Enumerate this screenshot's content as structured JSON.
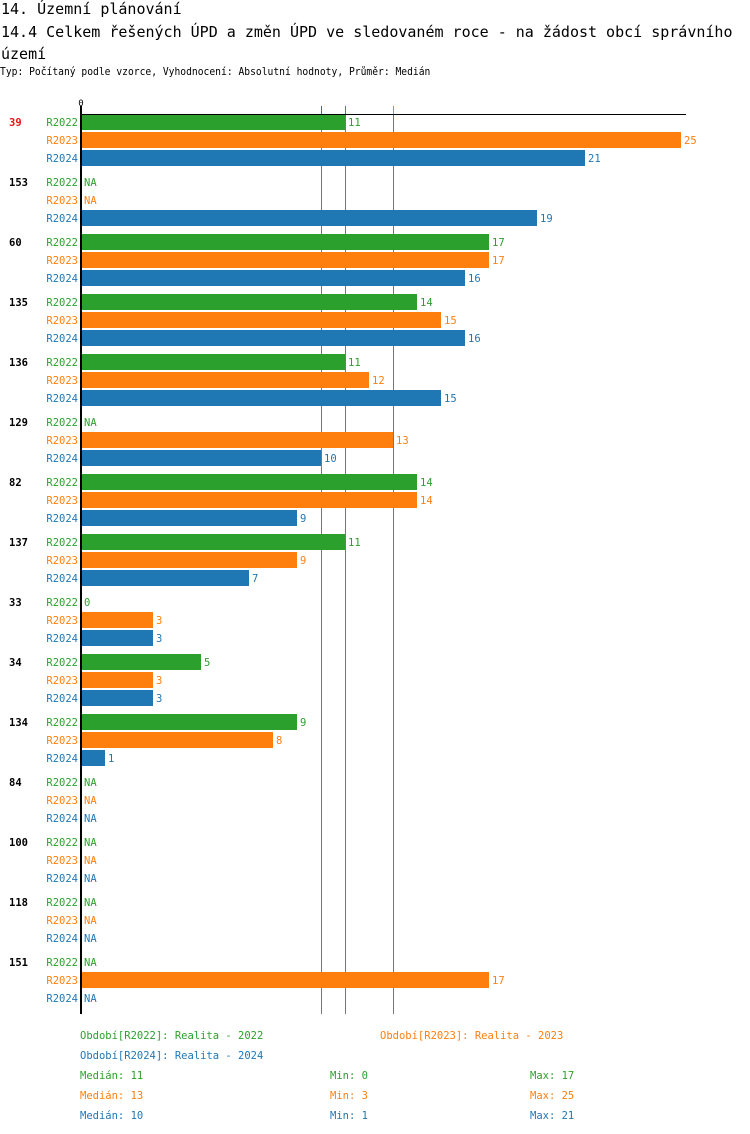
{
  "header": {
    "section": "14. Územní plánování",
    "title": "14.4 Celkem řešených ÚPD a změn ÚPD ve sledovaném roce - na žádost obcí správního území",
    "subtitle": "Typ: Počítaný podle vzorce, Vyhodnocení: Absolutní hodnoty, Průměr: Medián"
  },
  "chart_data": {
    "type": "bar",
    "orientation": "horizontal",
    "xlim": [
      0,
      25
    ],
    "x_tick_labels": [
      "0"
    ],
    "highlight_category": "39",
    "highlight_color": "#e8141b",
    "categories": [
      "39",
      "153",
      "60",
      "135",
      "136",
      "129",
      "82",
      "137",
      "33",
      "34",
      "134",
      "84",
      "100",
      "118",
      "151"
    ],
    "series": [
      {
        "name": "R2022",
        "color": "#2ca02c",
        "values": [
          11,
          null,
          17,
          14,
          11,
          null,
          14,
          11,
          0,
          5,
          9,
          null,
          null,
          null,
          null
        ]
      },
      {
        "name": "R2023",
        "color": "#ff7f0e",
        "values": [
          25,
          null,
          17,
          15,
          12,
          13,
          14,
          9,
          3,
          3,
          8,
          null,
          null,
          null,
          17
        ]
      },
      {
        "name": "R2024",
        "color": "#1f77b4",
        "values": [
          21,
          19,
          16,
          16,
          15,
          10,
          9,
          7,
          3,
          3,
          1,
          null,
          null,
          null,
          null
        ]
      }
    ],
    "na_label": "NA",
    "medians": [
      11,
      13,
      10
    ]
  },
  "legend": {
    "periods": [
      "Období[R2022]: Realita - 2022",
      "Období[R2023]: Realita - 2023",
      "Období[R2024]: Realita - 2024"
    ],
    "stats": [
      {
        "median": "Medián: 11",
        "min": "Min: 0",
        "max": "Max: 17"
      },
      {
        "median": "Medián: 13",
        "min": "Min: 3",
        "max": "Max: 25"
      },
      {
        "median": "Medián: 10",
        "min": "Min: 1",
        "max": "Max: 21"
      }
    ]
  }
}
